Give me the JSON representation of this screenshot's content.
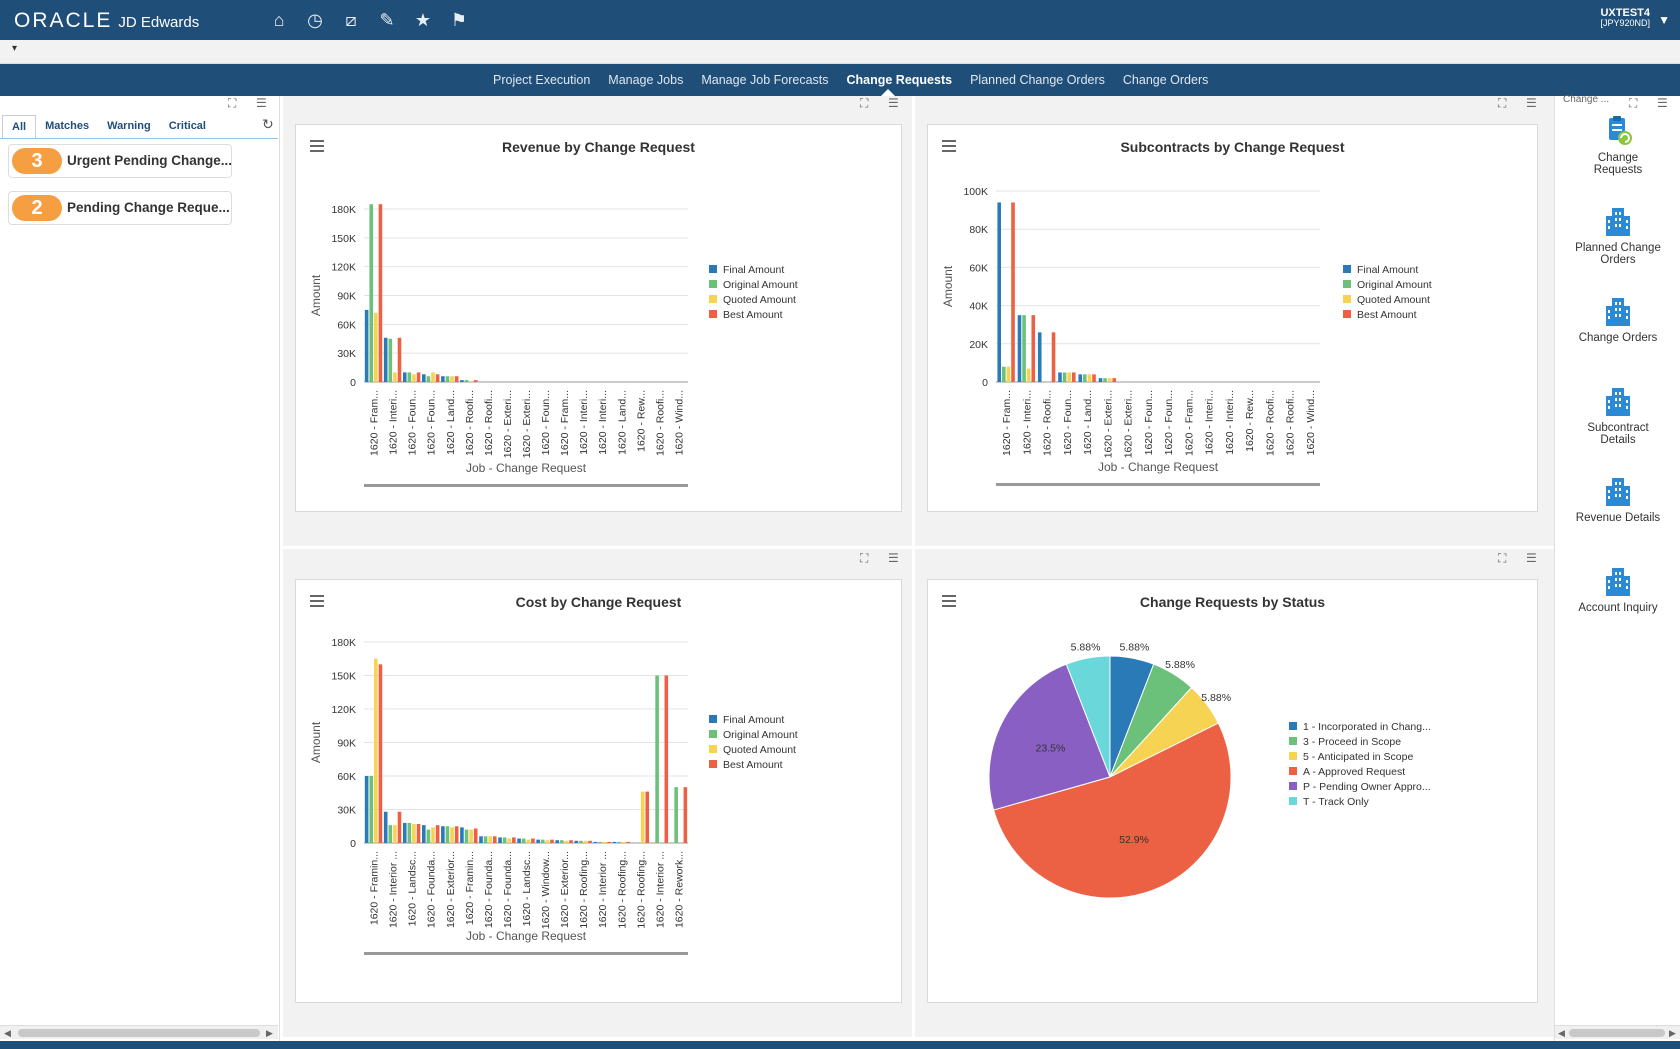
{
  "header": {
    "brand_oracle": "ORACLE",
    "brand_product": "JD Edwards",
    "nav_icons": [
      "home-icon",
      "recent-icon",
      "watchlist-icon",
      "favorites-edit-icon",
      "star-icon",
      "flag-icon"
    ],
    "user_name": "UXTEST4",
    "user_env": "[JPY920ND]"
  },
  "tabs": [
    {
      "label": "Project Execution",
      "active": false
    },
    {
      "label": "Manage Jobs",
      "active": false
    },
    {
      "label": "Manage Job Forecasts",
      "active": false
    },
    {
      "label": "Change Requests",
      "active": true
    },
    {
      "label": "Planned Change Orders",
      "active": false
    },
    {
      "label": "Change Orders",
      "active": false
    }
  ],
  "watchlist": {
    "filters": [
      "All",
      "Matches",
      "Warning",
      "Critical"
    ],
    "active_filter": "All",
    "items": [
      {
        "count": "3",
        "label": "Urgent Pending Change..."
      },
      {
        "count": "2",
        "label": "Pending Change Reque..."
      }
    ]
  },
  "springboard": {
    "header_text": "Change ...",
    "items": [
      {
        "label_line1": "Change",
        "label_line2": "Requests",
        "icon": "change-requests-icon"
      },
      {
        "label_line1": "Planned Change",
        "label_line2": "Orders",
        "icon": "building-icon"
      },
      {
        "label_line1": "Change Orders",
        "label_line2": "",
        "icon": "building-icon"
      },
      {
        "label_line1": "Subcontract",
        "label_line2": "Details",
        "icon": "building-icon"
      },
      {
        "label_line1": "Revenue Details",
        "label_line2": "",
        "icon": "building-icon"
      },
      {
        "label_line1": "Account Inquiry",
        "label_line2": "",
        "icon": "building-icon"
      }
    ]
  },
  "colors": {
    "final": "#2a7ab8",
    "original": "#6cc17a",
    "quoted": "#f7d354",
    "best": "#ec6043",
    "header_bg": "#1f4e79",
    "badge": "#f59e42"
  },
  "chart_data": [
    {
      "type": "bar",
      "title": "Revenue by Change Request",
      "xlabel": "Job - Change Request",
      "ylabel": "Amount",
      "ylim": [
        0,
        180000
      ],
      "yticks": [
        "0",
        "30K",
        "60K",
        "90K",
        "120K",
        "150K",
        "180K"
      ],
      "categories": [
        "1620 - Fram...",
        "1620 - Interi...",
        "1620 - Foun...",
        "1620 - Foun...",
        "1620 - Land...",
        "1620 - Roofi...",
        "1620 - Roofi...",
        "1620 - Exteri...",
        "1620 - Exteri...",
        "1620 - Foun...",
        "1620 - Fram...",
        "1620 - Interi...",
        "1620 - Interi...",
        "1620 - Land...",
        "1620 - Rew...",
        "1620 - Roofi...",
        "1620 - Wind..."
      ],
      "series": [
        {
          "name": "Final Amount",
          "values": [
            75000,
            46000,
            10000,
            8000,
            6000,
            2000,
            0,
            0,
            0,
            0,
            0,
            0,
            0,
            0,
            0,
            0,
            0
          ]
        },
        {
          "name": "Original Amount",
          "values": [
            185000,
            45000,
            10000,
            6000,
            6000,
            2000,
            0,
            0,
            0,
            0,
            0,
            0,
            0,
            0,
            0,
            0,
            0
          ]
        },
        {
          "name": "Quoted Amount",
          "values": [
            72000,
            10000,
            8000,
            10000,
            6000,
            1000,
            0,
            0,
            0,
            0,
            0,
            0,
            0,
            0,
            0,
            0,
            0
          ]
        },
        {
          "name": "Best Amount",
          "values": [
            185000,
            46000,
            10000,
            8000,
            6000,
            2000,
            0,
            0,
            0,
            0,
            0,
            0,
            0,
            0,
            0,
            0,
            0
          ]
        }
      ],
      "legend": "right"
    },
    {
      "type": "bar",
      "title": "Subcontracts by Change Request",
      "xlabel": "Job - Change Request",
      "ylabel": "Amount",
      "ylim": [
        0,
        100000
      ],
      "yticks": [
        "0",
        "20K",
        "40K",
        "60K",
        "80K",
        "100K"
      ],
      "categories": [
        "1620 - Fram...",
        "1620 - Interi...",
        "1620 - Roofi...",
        "1620 - Foun...",
        "1620 - Land...",
        "1620 - Exteri...",
        "1620 - Exteri...",
        "1620 - Foun...",
        "1620 - Foun...",
        "1620 - Fram...",
        "1620 - Interi...",
        "1620 - Interi...",
        "1620 - Rew...",
        "1620 - Roofi...",
        "1620 - Roofi...",
        "1620 - Wind..."
      ],
      "series": [
        {
          "name": "Final Amount",
          "values": [
            94000,
            35000,
            26000,
            5000,
            4000,
            2000,
            0,
            0,
            0,
            0,
            0,
            0,
            0,
            0,
            0,
            0
          ]
        },
        {
          "name": "Original Amount",
          "values": [
            8000,
            35000,
            0,
            5000,
            4000,
            2000,
            0,
            0,
            0,
            0,
            0,
            0,
            0,
            0,
            0,
            0
          ]
        },
        {
          "name": "Quoted Amount",
          "values": [
            8000,
            7000,
            0,
            5000,
            4000,
            2000,
            0,
            0,
            0,
            0,
            0,
            0,
            0,
            0,
            0,
            0
          ]
        },
        {
          "name": "Best Amount",
          "values": [
            94000,
            35000,
            26000,
            5000,
            4000,
            2000,
            0,
            0,
            0,
            0,
            0,
            0,
            0,
            0,
            0,
            0
          ]
        }
      ],
      "legend": "right"
    },
    {
      "type": "bar",
      "title": "Cost by Change Request",
      "xlabel": "Job - Change Request",
      "ylabel": "Amount",
      "ylim": [
        0,
        180000
      ],
      "yticks": [
        "0",
        "30K",
        "60K",
        "90K",
        "120K",
        "150K",
        "180K"
      ],
      "categories": [
        "1620 - Framin...",
        "1620 - Interior ...",
        "1620 - Landsc...",
        "1620 - Founda...",
        "1620 - Exterior...",
        "1620 - Framin...",
        "1620 - Founda...",
        "1620 - Founda...",
        "1620 - Landsc...",
        "1620 - Window...",
        "1620 - Exterior...",
        "1620 - Roofing...",
        "1620 - Interior ...",
        "1620 - Roofing...",
        "1620 - Roofing...",
        "1620 - Interior ...",
        "1620 - Rework..."
      ],
      "series": [
        {
          "name": "Final Amount",
          "values": [
            60000,
            28000,
            18000,
            16000,
            15000,
            14000,
            6000,
            5000,
            4000,
            3000,
            2500,
            2000,
            1000,
            1000,
            0,
            0,
            0
          ]
        },
        {
          "name": "Original Amount",
          "values": [
            60000,
            16000,
            18000,
            12000,
            15000,
            12000,
            6000,
            5000,
            4000,
            3000,
            2500,
            2000,
            1000,
            1000,
            0,
            150000,
            50000
          ]
        },
        {
          "name": "Quoted Amount",
          "values": [
            165000,
            16000,
            17000,
            14000,
            14000,
            12000,
            6000,
            4000,
            3000,
            2500,
            2000,
            2000,
            1000,
            1000,
            46000,
            0,
            0
          ]
        },
        {
          "name": "Best Amount",
          "values": [
            160000,
            28000,
            17000,
            16000,
            15000,
            13000,
            6000,
            5000,
            4000,
            3000,
            2500,
            2000,
            1000,
            1000,
            46000,
            150000,
            50000
          ]
        }
      ],
      "legend": "right"
    },
    {
      "type": "pie",
      "title": "Change Requests by Status",
      "slices": [
        {
          "label": "1 - Incorporated in Chang...",
          "value": 5.88,
          "display": "5.88%",
          "color": "#2a7ab8"
        },
        {
          "label": "3 - Proceed in Scope",
          "value": 5.88,
          "display": "5.88%",
          "color": "#6cc17a"
        },
        {
          "label": "5 - Anticipated in Scope",
          "value": 5.88,
          "display": "5.88%",
          "color": "#f7d354"
        },
        {
          "label": "A - Approved Request",
          "value": 52.9,
          "display": "52.9%",
          "color": "#ec6043"
        },
        {
          "label": "P - Pending Owner Appro...",
          "value": 23.5,
          "display": "23.5%",
          "color": "#8a5fc4"
        },
        {
          "label": "T - Track Only",
          "value": 5.88,
          "display": "5.88%",
          "color": "#6ad8db"
        }
      ],
      "legend": "right"
    }
  ]
}
